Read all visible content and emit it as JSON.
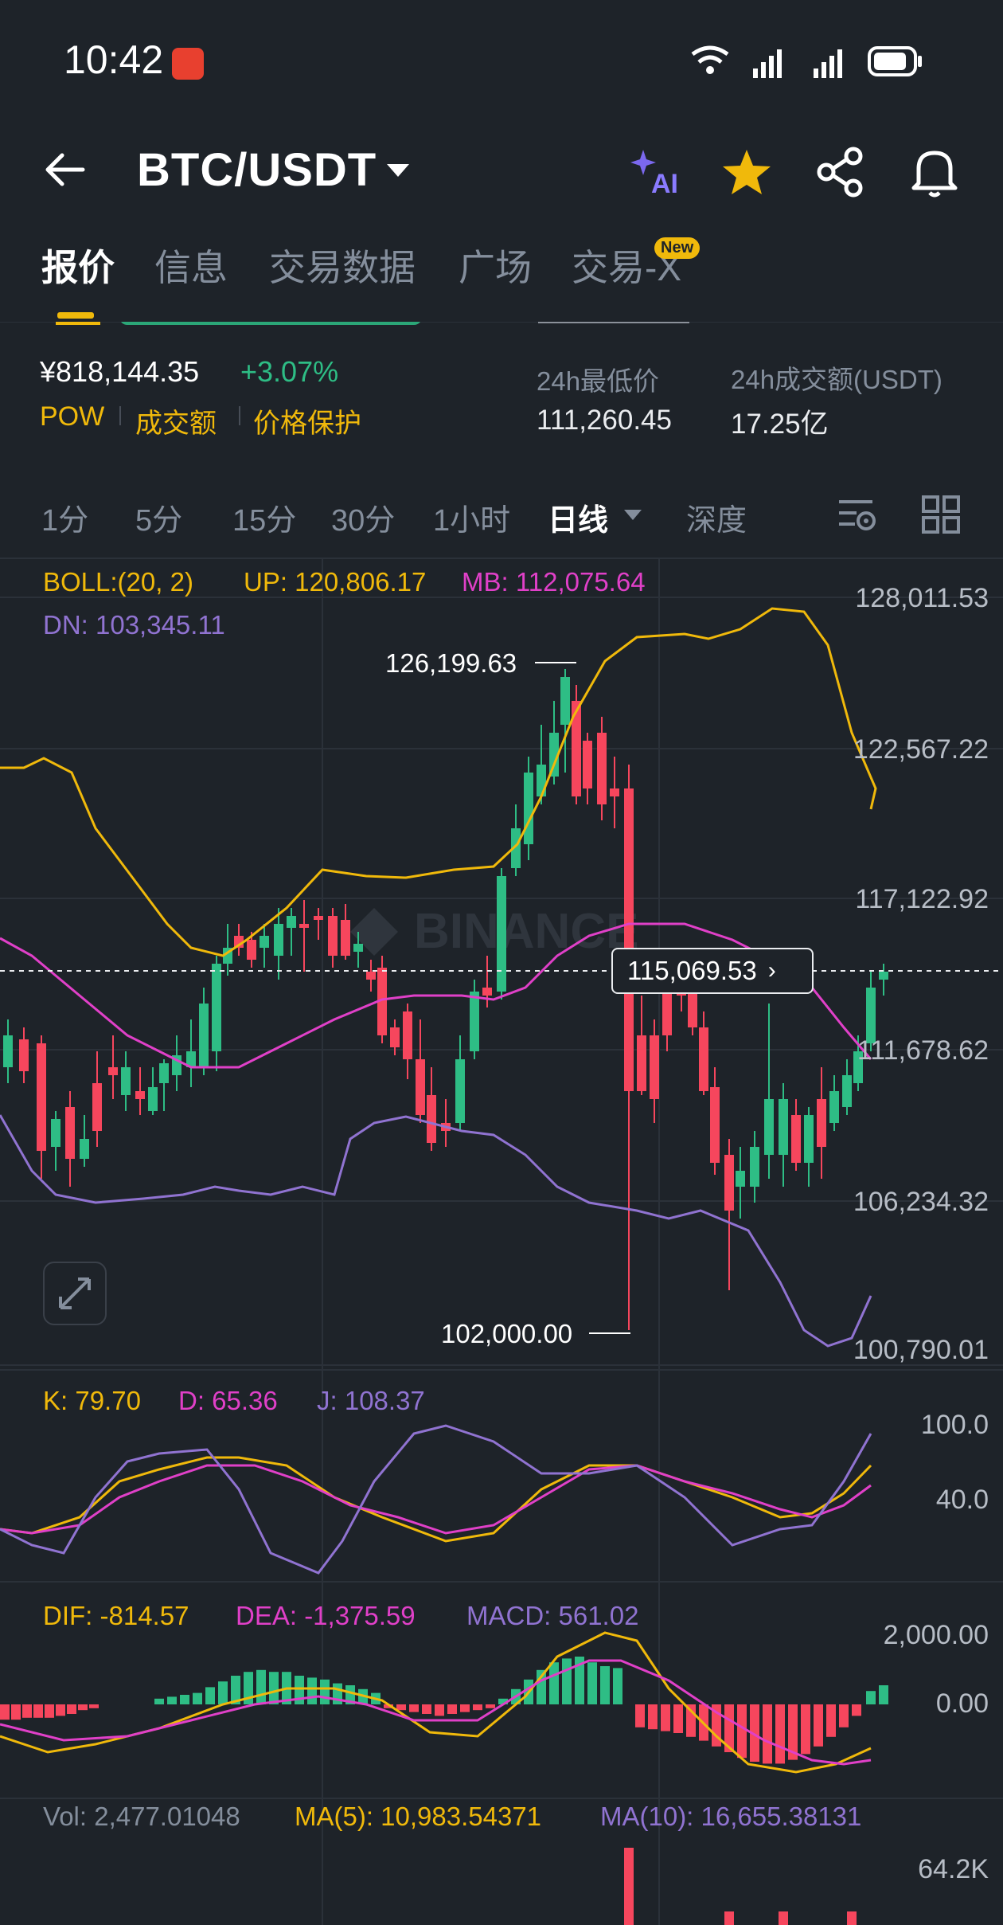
{
  "status_bar": {
    "time": "10:42"
  },
  "header": {
    "pair": "BTC/USDT",
    "ai_label": "AI"
  },
  "tabs": [
    {
      "label": "报价",
      "active": true
    },
    {
      "label": "信息",
      "active": false
    },
    {
      "label": "交易数据",
      "active": false
    },
    {
      "label": "广场",
      "active": false
    },
    {
      "label": "交易-X",
      "active": false,
      "badge": "New"
    }
  ],
  "price": {
    "cny": "¥818,144.35",
    "change": "+3.07%",
    "tags": [
      "POW",
      "成交额",
      "价格保护"
    ]
  },
  "stats": [
    {
      "label": "24h最低价",
      "value": "111,260.45"
    },
    {
      "label": "24h成交额(USDT)",
      "value": "17.25亿"
    }
  ],
  "intervals": [
    "1分",
    "5分",
    "15分",
    "30分",
    "1小时",
    "日线",
    "深度"
  ],
  "active_interval": "日线",
  "boll": {
    "label": "BOLL:(20, 2)",
    "up": "UP: 120,806.17",
    "mb": "MB: 112,075.64",
    "dn": "DN: 103,345.11"
  },
  "price_axis": [
    "128,011.53",
    "122,567.22",
    "117,122.92",
    "111,678.62",
    "106,234.32",
    "100,790.01"
  ],
  "high_marker": "126,199.63",
  "low_marker": "102,000.00",
  "last_price": "115,069.53",
  "watermark": "BINANCE",
  "kdj": {
    "k": "K: 79.70",
    "d": "D: 65.36",
    "j": "J: 108.37",
    "axis": [
      "100.0",
      "40.0"
    ]
  },
  "macd": {
    "dif": "DIF: -814.57",
    "dea": "DEA: -1,375.59",
    "macd": "MACD: 561.02",
    "axis": [
      "2,000.00",
      "0.00"
    ]
  },
  "vol": {
    "vol": "Vol: 2,477.01048",
    "ma5": "MA(5): 10,983.54371",
    "ma10": "MA(10): 16,655.38131",
    "axis": "64.2K"
  },
  "colors": {
    "up": "#2ebd85",
    "down": "#f6465d",
    "accent": "#f0b90b",
    "mb": "#e040c8",
    "dn": "#9073d1"
  }
}
